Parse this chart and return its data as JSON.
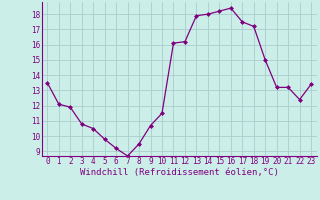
{
  "x": [
    0,
    1,
    2,
    3,
    4,
    5,
    6,
    7,
    8,
    9,
    10,
    11,
    12,
    13,
    14,
    15,
    16,
    17,
    18,
    19,
    20,
    21,
    22,
    23
  ],
  "y": [
    13.5,
    12.1,
    11.9,
    10.8,
    10.5,
    9.8,
    9.2,
    8.7,
    9.5,
    10.7,
    11.5,
    16.1,
    16.2,
    17.9,
    18.0,
    18.2,
    18.4,
    17.5,
    17.2,
    15.0,
    13.2,
    13.2,
    12.4,
    13.4
  ],
  "line_color": "#800080",
  "marker": "D",
  "marker_size": 2.0,
  "bg_color": "#cceee8",
  "grid_color": "#aacccc",
  "xlabel": "Windchill (Refroidissement éolien,°C)",
  "xlabel_color": "#800080",
  "tick_color": "#800080",
  "ylim_min": 8.7,
  "ylim_max": 18.8,
  "xlim_min": -0.5,
  "xlim_max": 23.5,
  "yticks": [
    9,
    10,
    11,
    12,
    13,
    14,
    15,
    16,
    17,
    18
  ],
  "xticks": [
    0,
    1,
    2,
    3,
    4,
    5,
    6,
    7,
    8,
    9,
    10,
    11,
    12,
    13,
    14,
    15,
    16,
    17,
    18,
    19,
    20,
    21,
    22,
    23
  ],
  "tick_fontsize": 5.5,
  "xlabel_fontsize": 6.5,
  "linewidth": 0.9
}
